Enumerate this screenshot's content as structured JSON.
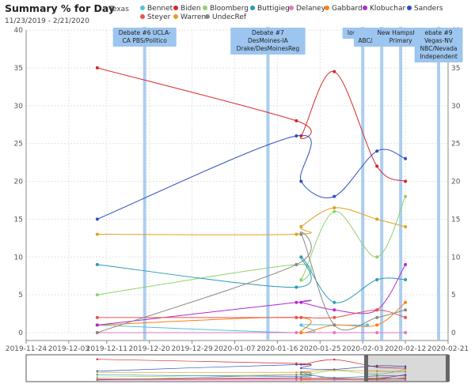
{
  "chart_data": {
    "type": "line",
    "title": "Summary % for Day",
    "subtitle": "11/23/2019 - 2/21/2020",
    "region": "Texas",
    "ylim": [
      0,
      40
    ],
    "y_ticks": [
      0,
      5,
      10,
      15,
      20,
      25,
      30,
      35,
      40
    ],
    "x_ticks": [
      "2019-11-24",
      "2019-12-03",
      "2019-12-11",
      "2019-12-20",
      "2019-12-29",
      "2020-01-07",
      "2020-01-16",
      "2020-01-25",
      "2020-02-03",
      "2020-02-12",
      "2020-02-21"
    ],
    "grid": true,
    "legend_position": "top",
    "series": [
      {
        "name": "Bennet",
        "color": "#4fc3d9",
        "points": [
          [
            "2019-12-09",
            1
          ],
          [
            "2020-01-21",
            0
          ],
          [
            "2020-01-21",
            1
          ],
          [
            "2020-01-28",
            1
          ],
          [
            "2020-02-04",
            1
          ]
        ]
      },
      {
        "name": "Biden",
        "color": "#d62728",
        "points": [
          [
            "2019-12-09",
            35
          ],
          [
            "2020-01-20",
            28
          ],
          [
            "2020-01-21",
            26
          ],
          [
            "2020-01-28",
            34.5
          ],
          [
            "2020-02-06",
            22
          ],
          [
            "2020-02-12",
            20
          ]
        ]
      },
      {
        "name": "Bloomberg",
        "color": "#8fd16a",
        "points": [
          [
            "2019-12-09",
            5
          ],
          [
            "2020-01-20",
            9
          ],
          [
            "2020-01-21",
            7
          ],
          [
            "2020-01-28",
            16
          ],
          [
            "2020-02-06",
            10
          ],
          [
            "2020-02-12",
            18
          ]
        ]
      },
      {
        "name": "Buttigieg",
        "color": "#2a9bb0",
        "points": [
          [
            "2019-12-09",
            9
          ],
          [
            "2020-01-20",
            6
          ],
          [
            "2020-01-21",
            10
          ],
          [
            "2020-01-28",
            4
          ],
          [
            "2020-02-06",
            7
          ],
          [
            "2020-02-12",
            7
          ]
        ]
      },
      {
        "name": "Delaney",
        "color": "#e377c2",
        "points": [
          [
            "2019-12-09",
            0
          ],
          [
            "2020-01-20",
            0
          ],
          [
            "2020-01-21",
            0
          ],
          [
            "2020-01-28",
            0
          ],
          [
            "2020-02-06",
            0
          ],
          [
            "2020-02-12",
            0
          ]
        ]
      },
      {
        "name": "Gabbard",
        "color": "#ff7f0e",
        "points": [
          [
            "2019-12-09",
            1
          ],
          [
            "2020-01-20",
            2
          ],
          [
            "2020-01-21",
            0
          ],
          [
            "2020-01-28",
            1
          ],
          [
            "2020-02-06",
            1
          ],
          [
            "2020-02-12",
            4
          ]
        ]
      },
      {
        "name": "Klobuchar",
        "color": "#b12bd1",
        "points": [
          [
            "2019-12-09",
            1
          ],
          [
            "2020-01-20",
            4
          ],
          [
            "2020-01-21",
            4
          ],
          [
            "2020-01-28",
            3
          ],
          [
            "2020-02-06",
            3
          ],
          [
            "2020-02-12",
            9
          ]
        ]
      },
      {
        "name": "Sanders",
        "color": "#2f4fbf",
        "points": [
          [
            "2019-12-09",
            15
          ],
          [
            "2020-01-20",
            26
          ],
          [
            "2020-01-21",
            20
          ],
          [
            "2020-01-28",
            18
          ],
          [
            "2020-02-06",
            24
          ],
          [
            "2020-02-12",
            23
          ]
        ]
      },
      {
        "name": "Steyer",
        "color": "#e8554e",
        "points": [
          [
            "2019-12-09",
            2
          ],
          [
            "2020-01-20",
            2
          ],
          [
            "2020-01-21",
            2
          ],
          [
            "2020-01-28",
            2
          ],
          [
            "2020-02-06",
            3
          ],
          [
            "2020-02-12",
            2
          ]
        ]
      },
      {
        "name": "Warren",
        "color": "#e0a020",
        "points": [
          [
            "2019-12-09",
            13
          ],
          [
            "2020-01-20",
            13
          ],
          [
            "2020-01-21",
            14
          ],
          [
            "2020-01-28",
            16.5
          ],
          [
            "2020-02-06",
            15
          ],
          [
            "2020-02-12",
            14
          ]
        ]
      },
      {
        "name": "UndecRef",
        "color": "#888888",
        "points": [
          [
            "2019-12-09",
            0
          ],
          [
            "2020-01-20",
            9
          ],
          [
            "2020-01-21",
            13
          ],
          [
            "2020-01-28",
            1
          ],
          [
            "2020-02-06",
            2
          ],
          [
            "2020-02-12",
            3
          ]
        ]
      }
    ],
    "events": [
      {
        "date": "2019-12-19",
        "lines": [
          "Debate #6 UCLA-",
          "CA PBS/Politico"
        ]
      },
      {
        "date": "2020-01-14",
        "lines": [
          "Debate #7",
          "DesMoines-IA",
          "Drake/DesMoinesReg"
        ]
      },
      {
        "date": "2020-02-03",
        "lines": [
          "Iowa Cauc"
        ]
      },
      {
        "date": "2020-02-07",
        "lines": [
          "Mar",
          "ABC/AppleNews"
        ]
      },
      {
        "date": "2020-02-11",
        "lines": [
          "New Hampshire",
          "Primary"
        ]
      },
      {
        "date": "2020-02-19",
        "lines": [
          "ebate #9",
          "Vegas-NV",
          "NBC/Nevada",
          "Independent"
        ]
      }
    ]
  }
}
